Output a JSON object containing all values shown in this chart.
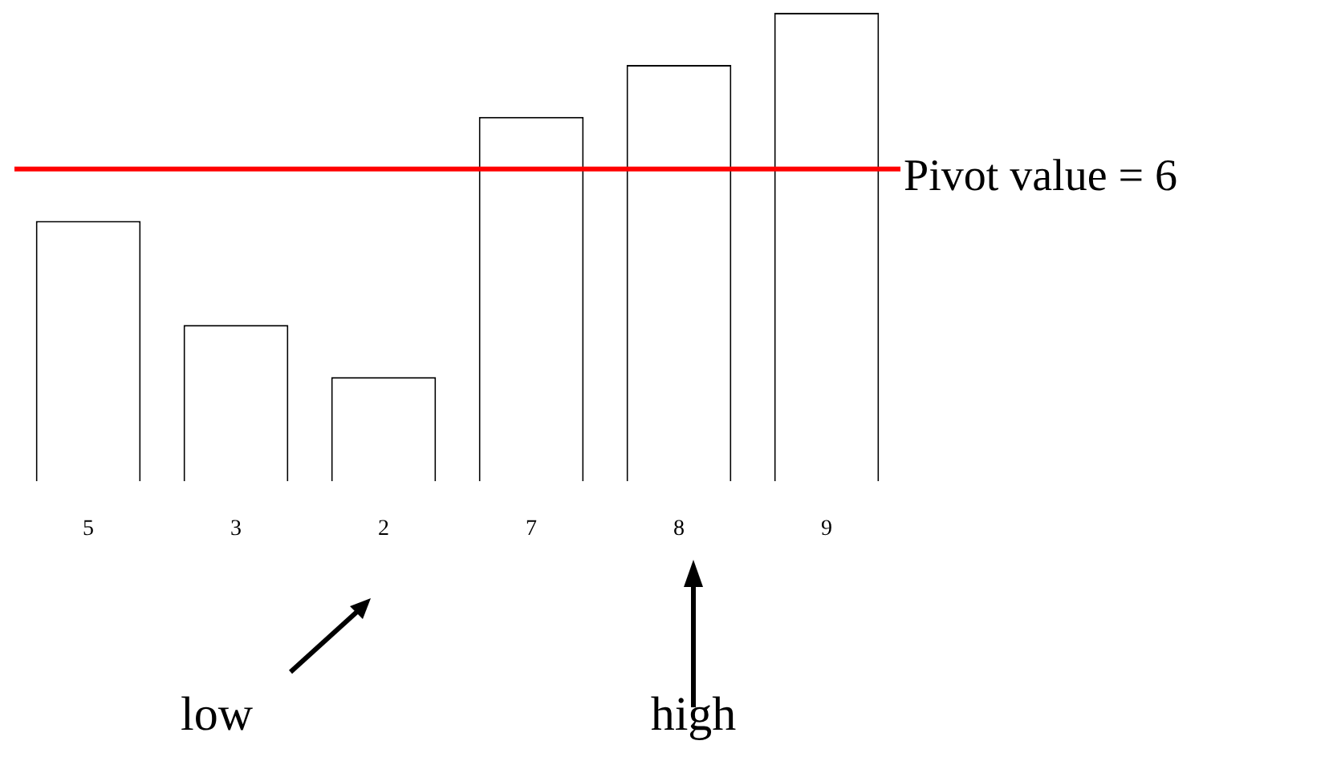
{
  "chart_data": {
    "type": "bar",
    "categories": [
      null,
      null,
      null,
      null,
      null,
      null
    ],
    "values": [
      5,
      3,
      2,
      7,
      8,
      9
    ],
    "color": "#ffffff",
    "data_labels": true,
    "legend": false,
    "ref_lines": [
      {
        "axis": "y",
        "value": 6,
        "label": "Pivot value = 6",
        "color": "#ff0000",
        "line_style": "solid"
      }
    ],
    "annotations": [
      "low",
      "high"
    ]
  }
}
